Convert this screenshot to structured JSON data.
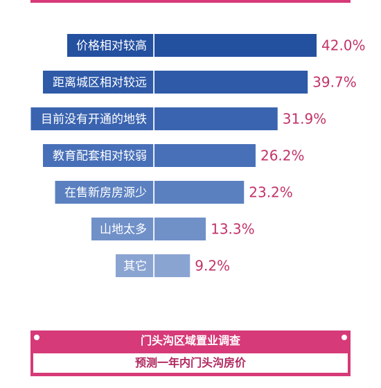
{
  "chart_data": {
    "type": "bar",
    "orientation": "horizontal",
    "categories": [
      "价格相对较高",
      "距离城区相对较远",
      "目前没有开通的地铁",
      "教育配套相对较弱",
      "在售新房房源少",
      "山地太多",
      "其它"
    ],
    "values": [
      42.0,
      39.7,
      31.9,
      26.2,
      23.2,
      13.3,
      9.2
    ],
    "value_labels": [
      "42.0%",
      "39.7%",
      "31.9%",
      "26.2%",
      "23.2%",
      "13.3%",
      "9.2%"
    ],
    "bar_colors": [
      "#2450a0",
      "#2e5aa8",
      "#3a64b0",
      "#4870b8",
      "#5a80c0",
      "#7090c8",
      "#8aa4d2"
    ],
    "label_color": "#c23368",
    "grid": false,
    "legend": "none"
  },
  "footer": {
    "title": "门头沟区域置业调查",
    "subtitle": "预测一年内门头沟房价"
  }
}
